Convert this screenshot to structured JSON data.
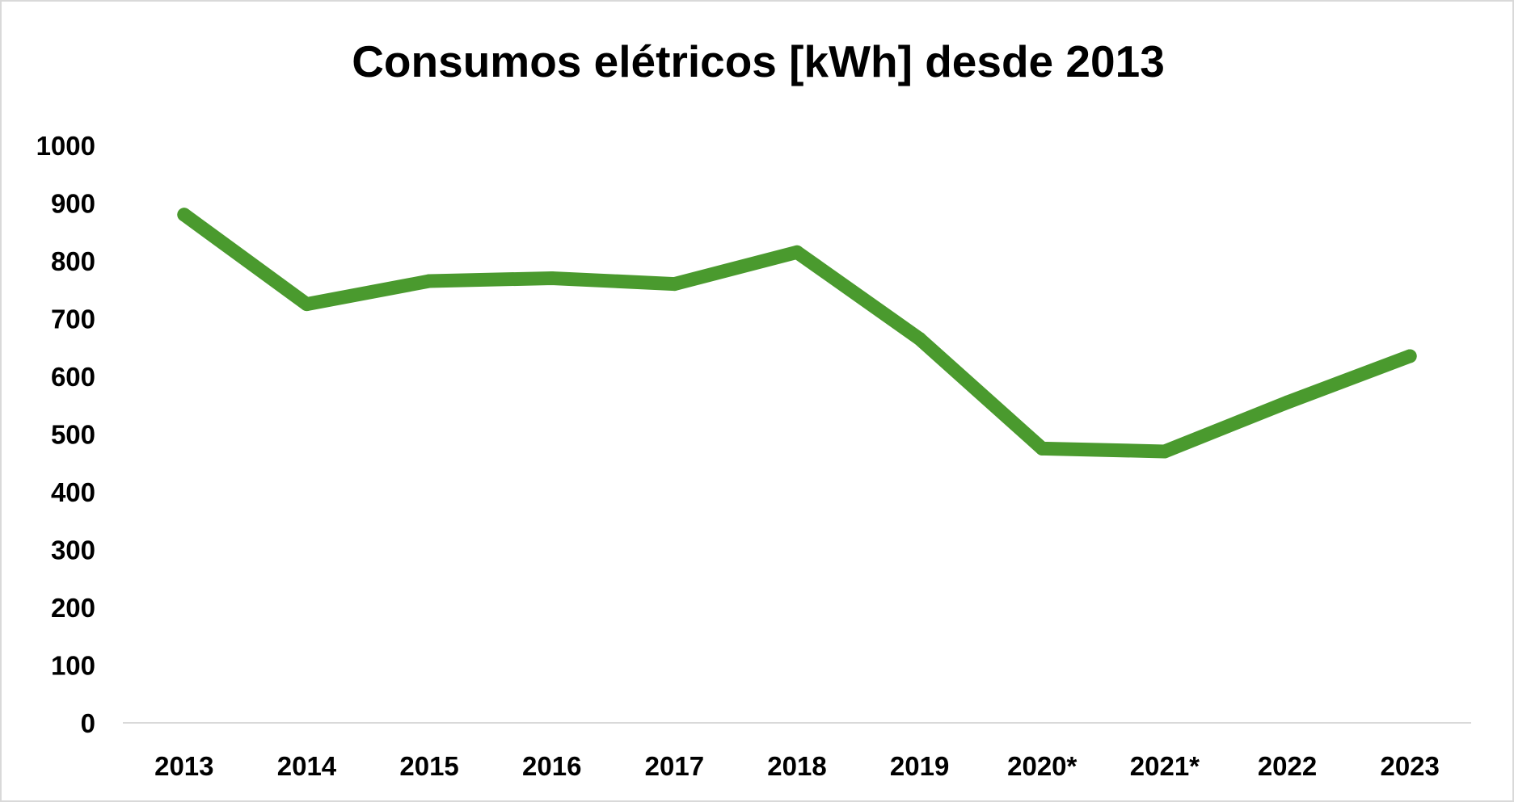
{
  "chart_data": {
    "type": "line",
    "title": "Consumos elétricos [kWh] desde 2013",
    "xlabel": "",
    "ylabel": "",
    "categories": [
      "2013",
      "2014",
      "2015",
      "2016",
      "2017",
      "2018",
      "2019",
      "2020*",
      "2021*",
      "2022",
      "2023"
    ],
    "series": [
      {
        "values": [
          880,
          725,
          765,
          770,
          760,
          815,
          665,
          475,
          470,
          555,
          635
        ]
      }
    ],
    "ylim": [
      0,
      1000
    ],
    "yticks": [
      0,
      100,
      200,
      300,
      400,
      500,
      600,
      700,
      800,
      900,
      1000
    ],
    "grid": false,
    "legend": "none",
    "colors": {
      "line": "#4a9a2e",
      "axis": "#d9d9d9",
      "text": "#000000",
      "border": "#d9d9d9"
    }
  }
}
